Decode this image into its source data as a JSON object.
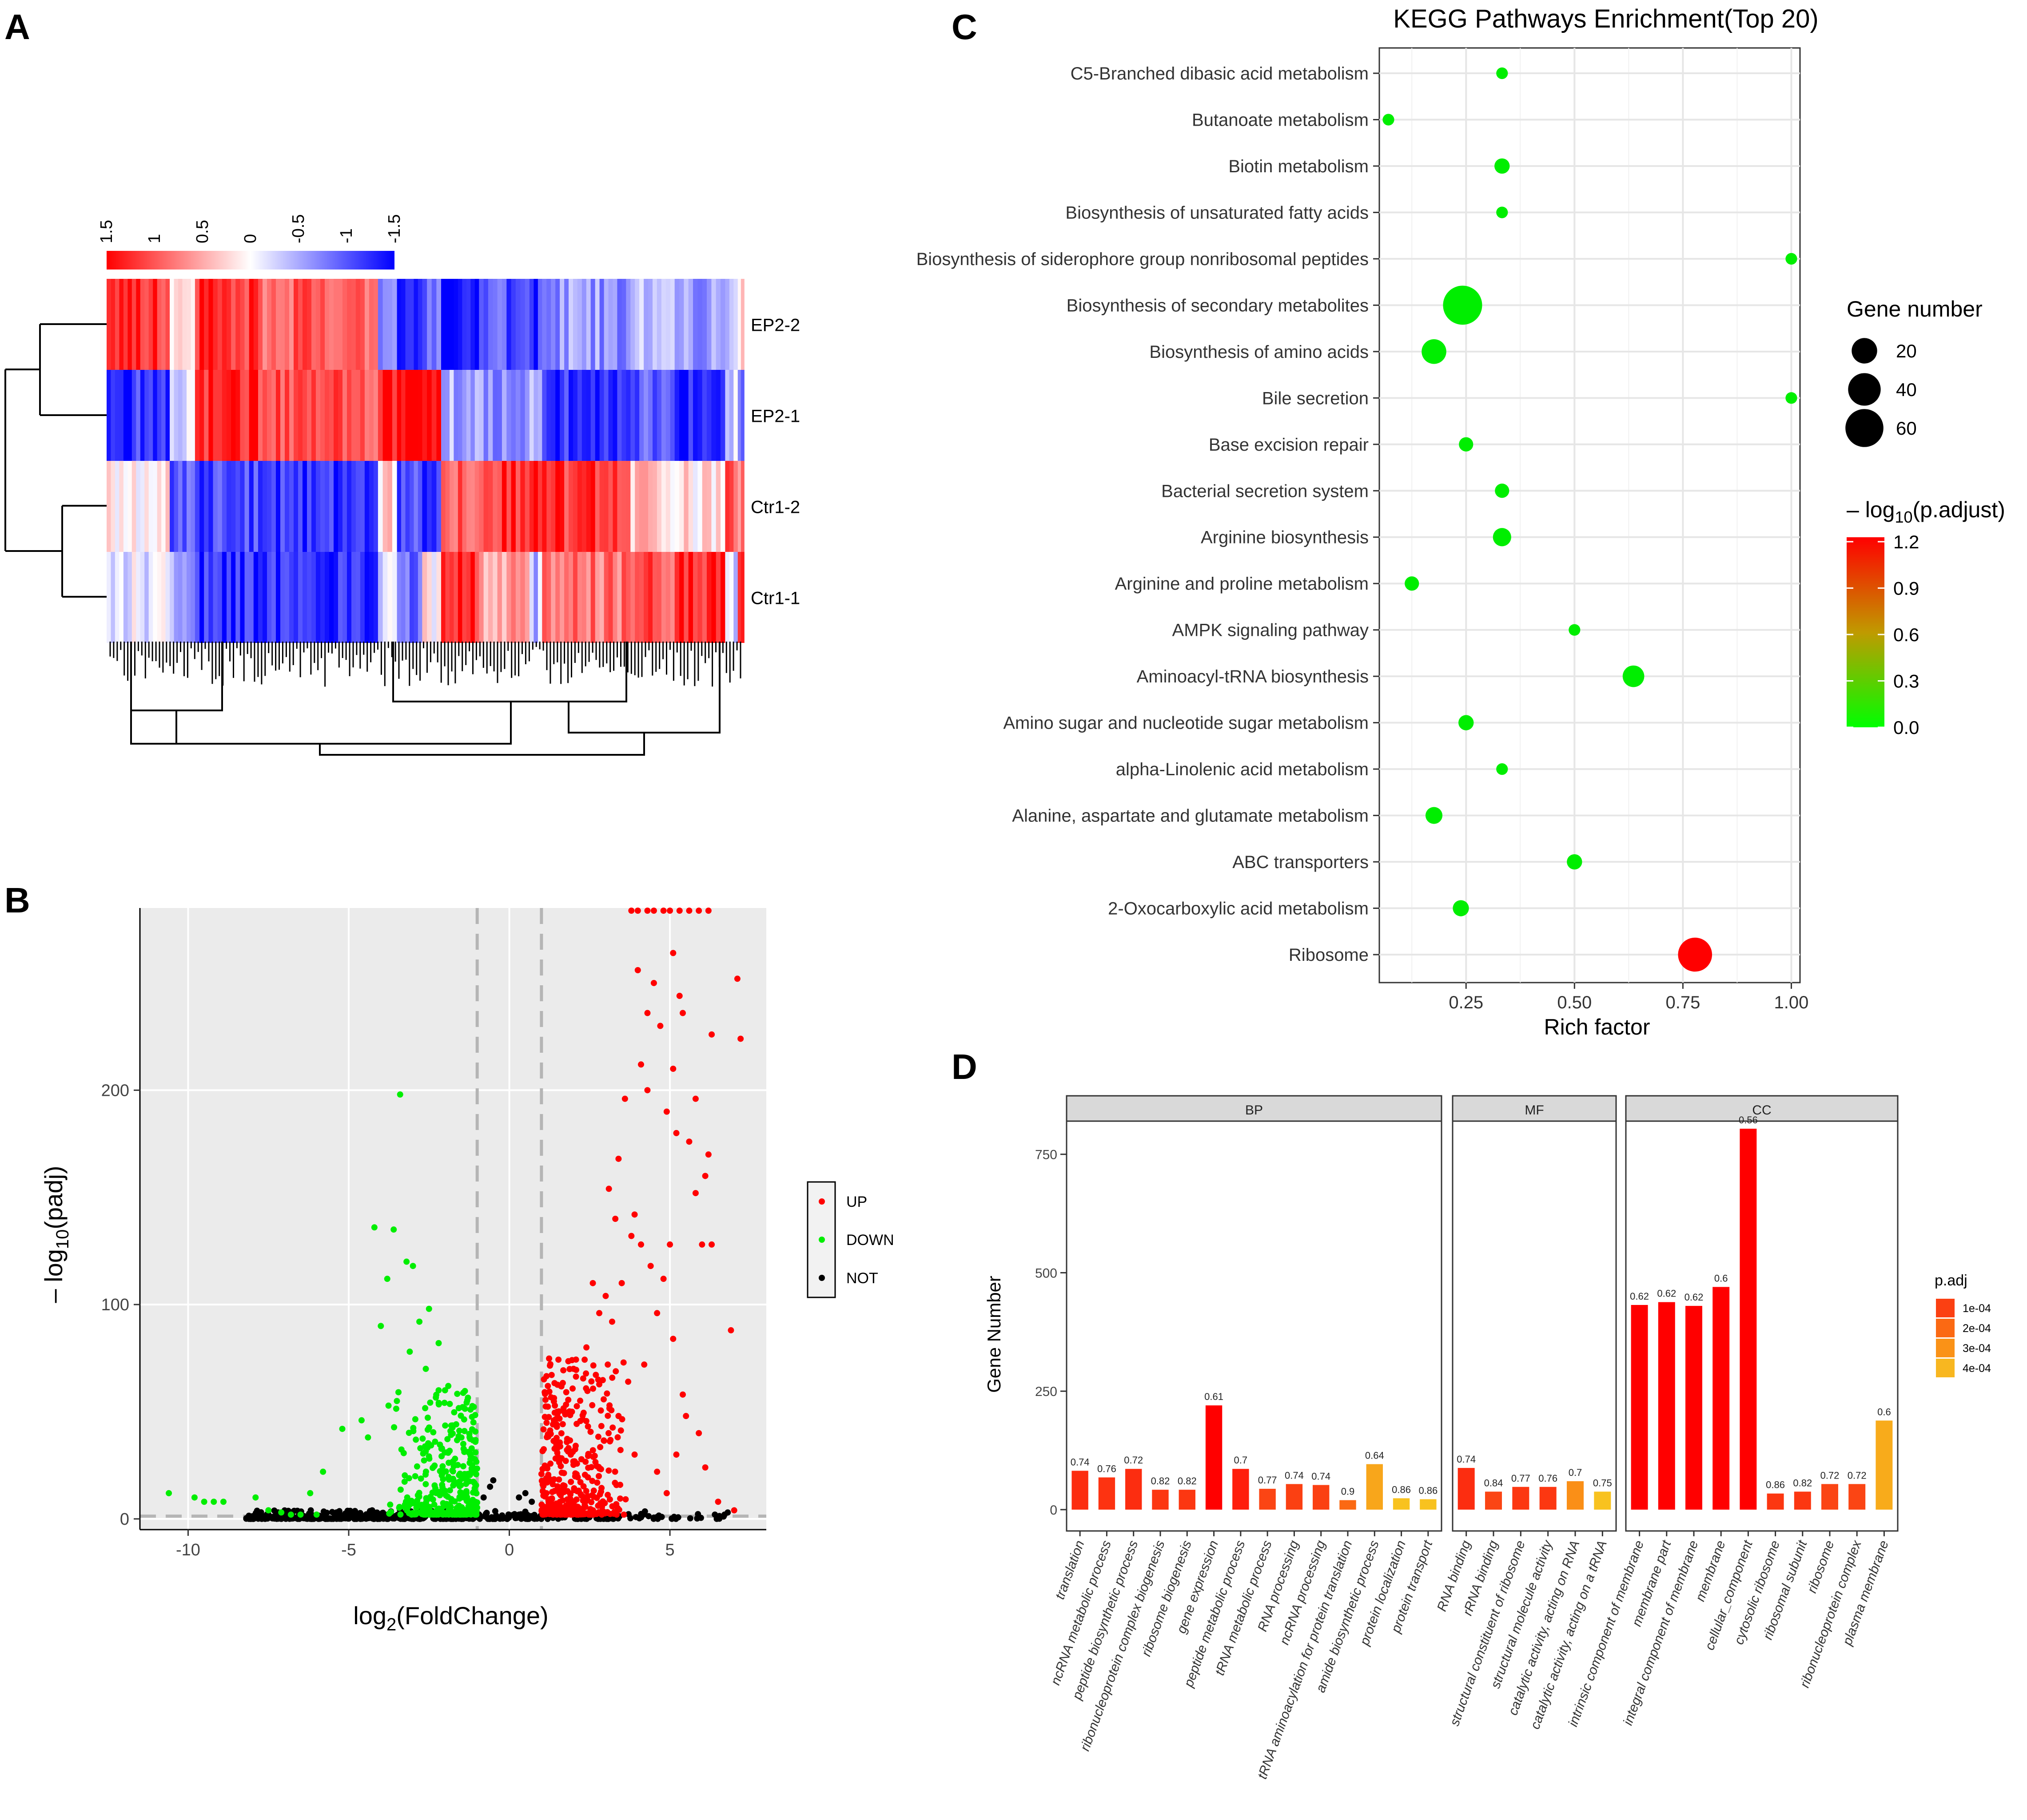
{
  "panels": {
    "A": {
      "label": "A"
    },
    "B": {
      "label": "B"
    },
    "C": {
      "label": "C"
    },
    "D": {
      "label": "D"
    }
  },
  "colors": {
    "red": "#ff0000",
    "blue": "#0000ff",
    "green": "#00ee00",
    "black": "#000000",
    "panel_bg": "#ebebeb",
    "grid": "#ffffff",
    "strip": "#d9d9d9"
  },
  "chart_data": [
    {
      "id": "heatmap",
      "type": "heatmap",
      "rows": [
        "EP2-2",
        "EP2-1",
        "Ctr1-2",
        "Ctr1-1"
      ],
      "scale_ticks": [
        "1.5",
        "1",
        "0.5",
        "0",
        "-0.5",
        "-1",
        "-1.5"
      ],
      "scale_range": [
        1.5,
        -1.5
      ],
      "blocks": [
        {
          "w": 4,
          "v": [
            1.4,
            -1.4,
            0.1,
            -0.3
          ]
        },
        {
          "w": 6,
          "v": [
            1.2,
            -1.2,
            0.1,
            -0.1
          ]
        },
        {
          "w": 4,
          "v": [
            0.3,
            -0.2,
            -1.0,
            -0.6
          ]
        },
        {
          "w": 10,
          "v": [
            1.2,
            1.3,
            -1.1,
            -1.2
          ]
        },
        {
          "w": 19,
          "v": [
            0.9,
            1.0,
            -1.2,
            -1.2
          ]
        },
        {
          "w": 3,
          "v": [
            -0.8,
            1.4,
            0.2,
            -0.3
          ]
        },
        {
          "w": 4,
          "v": [
            -1.2,
            1.5,
            -1.0,
            -0.9
          ]
        },
        {
          "w": 3,
          "v": [
            -0.9,
            1.4,
            -1.2,
            0.1
          ]
        },
        {
          "w": 6,
          "v": [
            -1.5,
            -0.5,
            1.0,
            1.3
          ]
        },
        {
          "w": 8,
          "v": [
            -1.0,
            -0.7,
            1.2,
            0.5
          ]
        },
        {
          "w": 2,
          "v": [
            -1.2,
            -0.3,
            1.5,
            -0.4
          ]
        },
        {
          "w": 14,
          "v": [
            -0.6,
            -1.2,
            1.2,
            0.8
          ]
        },
        {
          "w": 7,
          "v": [
            -0.4,
            -1.0,
            0.3,
            1.0
          ]
        },
        {
          "w": 8,
          "v": [
            -0.6,
            -1.3,
            0.2,
            1.3
          ]
        },
        {
          "w": 2,
          "v": [
            -0.3,
            -0.3,
            1.0,
            -0.2
          ]
        },
        {
          "w": 1,
          "v": [
            0.2,
            -0.9,
            0.8,
            1.3
          ]
        }
      ]
    },
    {
      "id": "volcano",
      "type": "scatter",
      "xlabel_main": "log",
      "xlabel_sub": "2",
      "xlabel_tail": "(FoldChange)",
      "ylabel_prefix": "– log",
      "ylabel_sub": "10",
      "ylabel_tail": "(padj)",
      "xlim": [
        -11.5,
        8
      ],
      "ylim": [
        -5,
        285
      ],
      "x_ticks": [
        -10,
        -5,
        0,
        5
      ],
      "x_tick_labels": [
        "-10",
        "-5",
        "0",
        "5"
      ],
      "y_ticks": [
        0,
        100,
        200
      ],
      "y_tick_labels": [
        "0",
        "100",
        "200"
      ],
      "thresholds_x": [
        -1,
        1
      ],
      "threshold_y": 1.3,
      "legend": [
        "UP",
        "DOWN",
        "NOT"
      ],
      "up_points": [
        [
          5.1,
          264
        ],
        [
          4.0,
          256
        ],
        [
          4.5,
          250
        ],
        [
          5.3,
          244
        ],
        [
          4.3,
          236
        ],
        [
          5.4,
          236
        ],
        [
          7.1,
          252
        ],
        [
          4.7,
          230
        ],
        [
          6.3,
          226
        ],
        [
          7.2,
          224
        ],
        [
          4.1,
          212
        ],
        [
          5.1,
          210
        ],
        [
          4.3,
          200
        ],
        [
          3.6,
          196
        ],
        [
          5.8,
          196
        ],
        [
          4.9,
          190
        ],
        [
          5.2,
          180
        ],
        [
          5.6,
          176
        ],
        [
          6.2,
          170
        ],
        [
          3.4,
          168
        ],
        [
          5.8,
          152
        ],
        [
          6.1,
          160
        ],
        [
          3.1,
          154
        ],
        [
          3.9,
          142
        ],
        [
          3.3,
          140
        ],
        [
          3.8,
          132
        ],
        [
          4.1,
          128
        ],
        [
          5.0,
          128
        ],
        [
          6.0,
          128
        ],
        [
          6.3,
          128
        ],
        [
          4.4,
          118
        ],
        [
          4.8,
          112
        ],
        [
          3.5,
          110
        ],
        [
          6.9,
          88
        ],
        [
          5.1,
          84
        ],
        [
          3.0,
          104
        ],
        [
          2.6,
          110
        ],
        [
          2.8,
          96
        ],
        [
          3.2,
          92
        ],
        [
          2.4,
          80
        ],
        [
          4.6,
          96
        ],
        [
          4.2,
          72
        ],
        [
          3.7,
          64
        ],
        [
          5.4,
          58
        ],
        [
          5.9,
          40
        ],
        [
          5.5,
          48
        ],
        [
          6.1,
          24
        ],
        [
          5.2,
          30
        ],
        [
          3.4,
          48
        ],
        [
          2.0,
          70
        ],
        [
          3.9,
          30
        ],
        [
          4.6,
          22
        ],
        [
          4.9,
          12
        ],
        [
          6.5,
          8
        ],
        [
          7.0,
          4
        ]
      ],
      "up_cluster": {
        "x": [
          1.0,
          3.8
        ],
        "y": [
          2,
          75
        ],
        "n": 420,
        "seed": 7
      },
      "up_capped_x": [
        3.8,
        4.0,
        4.3,
        4.5,
        4.8,
        5.0,
        5.3,
        5.6,
        5.9,
        6.2
      ],
      "down_points": [
        [
          -3.4,
          198
        ],
        [
          -4.2,
          136
        ],
        [
          -3.6,
          135
        ],
        [
          -3.2,
          120
        ],
        [
          -3.0,
          118
        ],
        [
          -3.8,
          112
        ],
        [
          -2.5,
          98
        ],
        [
          -2.8,
          92
        ],
        [
          -4.0,
          90
        ],
        [
          -2.2,
          82
        ],
        [
          -3.1,
          78
        ],
        [
          -2.6,
          70
        ],
        [
          -1.9,
          62
        ],
        [
          -2.2,
          60
        ],
        [
          -3.5,
          55
        ],
        [
          -4.6,
          46
        ],
        [
          -5.2,
          42
        ],
        [
          -4.4,
          38
        ],
        [
          -5.8,
          22
        ],
        [
          -6.2,
          12
        ],
        [
          -10.6,
          12
        ],
        [
          -9.8,
          10
        ],
        [
          -9.5,
          8
        ],
        [
          -9.2,
          8
        ],
        [
          -8.9,
          8
        ],
        [
          -7.9,
          10
        ],
        [
          -7.5,
          4
        ],
        [
          -7.1,
          3
        ],
        [
          -6.8,
          2
        ],
        [
          -6.5,
          2
        ],
        [
          -6.0,
          2
        ]
      ],
      "down_cluster": {
        "x": [
          -3.9,
          -1.0
        ],
        "y": [
          2,
          60
        ],
        "n": 380,
        "seed": 13
      },
      "not_points": [
        [
          -0.8,
          10
        ],
        [
          -0.6,
          15
        ],
        [
          -0.5,
          18
        ],
        [
          0.3,
          10
        ],
        [
          0.5,
          12
        ],
        [
          0.7,
          8
        ],
        [
          6.4,
          2
        ],
        [
          6.7,
          2
        ],
        [
          6.8,
          3
        ]
      ],
      "not_cluster": {
        "x": [
          -8.2,
          7
        ],
        "y": [
          0,
          4
        ],
        "n": 500,
        "seed": 21
      }
    },
    {
      "id": "kegg",
      "type": "scatter",
      "title": "KEGG Pathways Enrichment(Top 20)",
      "xlabel": "Rich factor",
      "xlim": [
        0.05,
        1.02
      ],
      "x_ticks": [
        0.25,
        0.5,
        0.75,
        1.0
      ],
      "x_tick_labels": [
        "0.25",
        "0.50",
        "0.75",
        "1.00"
      ],
      "legend_size_title": "Gene number",
      "legend_size_values": [
        20,
        40,
        60
      ],
      "legend_size_labels": [
        "20",
        "40",
        "60"
      ],
      "legend_color_title_prefix": "– log",
      "legend_color_title_sub": "10",
      "legend_color_title_tail": "(p.adjust)",
      "legend_color_ticks": [
        1.2,
        0.9,
        0.6,
        0.3,
        0.0
      ],
      "legend_color_labels": [
        "1.2",
        "0.9",
        "0.6",
        "0.3",
        "0.0"
      ],
      "pathways": [
        "C5-Branched dibasic acid metabolism",
        "Butanoate metabolism",
        "Biotin metabolism",
        "Biosynthesis of unsaturated fatty acids",
        "Biosynthesis of siderophore group nonribosomal peptides",
        "Biosynthesis of secondary metabolites",
        "Biosynthesis of amino acids",
        "Bile secretion",
        "Base excision repair",
        "Bacterial secretion system",
        "Arginine biosynthesis",
        "Arginine and proline metabolism",
        "AMPK signaling pathway",
        "Aminoacyl-tRNA biosynthesis",
        "Amino sugar and nucleotide sugar metabolism",
        "alpha-Linolenic acid metabolism",
        "Alanine, aspartate and glutamate metabolism",
        "ABC transporters",
        "2-Oxocarboxylic acid metabolism",
        "Ribosome"
      ],
      "rich_factor": [
        0.333,
        0.071,
        0.333,
        0.333,
        1.0,
        0.242,
        0.176,
        1.0,
        0.25,
        0.333,
        0.333,
        0.125,
        0.5,
        0.636,
        0.25,
        0.333,
        0.176,
        0.5,
        0.238,
        0.778
      ],
      "gene_number": [
        1,
        1,
        4,
        1,
        1,
        73,
        21,
        1,
        3,
        3,
        8,
        3,
        1,
        14,
        4,
        1,
        6,
        4,
        5,
        51
      ],
      "neg_log10_padj": [
        0,
        0,
        0,
        0,
        0,
        0,
        0,
        0,
        0,
        0,
        0,
        0,
        0,
        0,
        0,
        0,
        0,
        0,
        0,
        1.2
      ]
    },
    {
      "id": "go",
      "type": "bar",
      "ylabel": "Gene Number",
      "ylim": [
        -45,
        820
      ],
      "y_ticks": [
        0,
        250,
        500,
        750
      ],
      "y_tick_labels": [
        "0",
        "250",
        "500",
        "750"
      ],
      "legend_title": "p.adj",
      "legend_labels": [
        "1e-04",
        "2e-04",
        "3e-04",
        "4e-04"
      ],
      "legend_colors": [
        "#fb4012",
        "#fb6913",
        "#fa9217",
        "#f8b720"
      ],
      "facets": [
        {
          "name": "BP",
          "categories": [
            "translation",
            "ncRNA metabolic process",
            "peptide biosynthetic process",
            "ribonucleoprotein complex biogenesis",
            "ribosome biogenesis",
            "gene expression",
            "peptide metabolic process",
            "tRNA metabolic process",
            "RNA processing",
            "ncRNA processing",
            "tRNA aminoacylation for protein translation",
            "amide biosynthetic process",
            "protein localization",
            "protein transport"
          ],
          "values": [
            82,
            68,
            86,
            42,
            42,
            220,
            86,
            44,
            54,
            52,
            20,
            96,
            24,
            22
          ],
          "labels": [
            "0.74",
            "0.76",
            "0.72",
            "0.82",
            "0.82",
            "0.61",
            "0.7",
            "0.77",
            "0.74",
            "0.74",
            "0.9",
            "0.64",
            "0.86",
            "0.86"
          ],
          "colors": [
            "#fc2d10",
            "#fd3311",
            "#fc2d10",
            "#fc3711",
            "#fc3711",
            "#ff0000",
            "#ff1e0c",
            "#fb4514",
            "#fb4012",
            "#fb4012",
            "#fb6913",
            "#f8a61b",
            "#f8c21f",
            "#f8c21f"
          ]
        },
        {
          "name": "MF",
          "categories": [
            "RNA binding",
            "rRNA binding",
            "structural constituent of ribosome",
            "structural molecule activity",
            "catalytic activity, acting on RNA",
            "catalytic activity, acting on a tRNA"
          ],
          "values": [
            88,
            38,
            48,
            48,
            60,
            38
          ],
          "labels": [
            "0.74",
            "0.84",
            "0.77",
            "0.76",
            "0.7",
            "0.75"
          ],
          "colors": [
            "#fc2d10",
            "#fb4514",
            "#fc3711",
            "#fc3711",
            "#fa8f17",
            "#f8c21f"
          ]
        },
        {
          "name": "CC",
          "categories": [
            "intrinsic component of membrane",
            "membrane part",
            "integral component of membrane",
            "membrane",
            "cellular_component",
            "cytosolic ribosome",
            "ribosomal subunit",
            "ribosome",
            "ribonucleoprotein complex",
            "plasma membrane"
          ],
          "values": [
            432,
            438,
            430,
            470,
            804,
            34,
            38,
            54,
            54,
            188
          ],
          "labels": [
            "0.62",
            "0.62",
            "0.62",
            "0.6",
            "0.56",
            "0.86",
            "0.82",
            "0.72",
            "0.72",
            "0.6"
          ],
          "colors": [
            "#ff0000",
            "#ff0000",
            "#ff0000",
            "#ff0000",
            "#ff0000",
            "#fc3711",
            "#fc3711",
            "#fb4514",
            "#fb4514",
            "#f8ab1b"
          ]
        }
      ]
    }
  ]
}
